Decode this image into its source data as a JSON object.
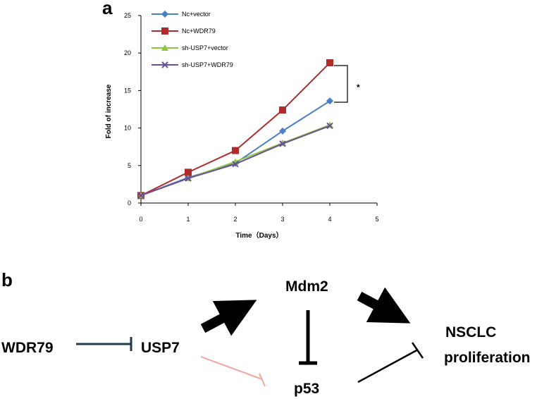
{
  "panel_a_label": "a",
  "panel_b_label": "b",
  "chart_data": {
    "type": "line",
    "xlabel": "Time（Days）",
    "ylabel": "Fold of increase",
    "xlim": [
      0,
      5
    ],
    "ylim": [
      0,
      25
    ],
    "xticks": [
      "0",
      "1",
      "2",
      "3",
      "4",
      "5"
    ],
    "yticks": [
      "0",
      "5",
      "10",
      "15",
      "20",
      "25"
    ],
    "grid": false,
    "legend_position": "top-left",
    "x": [
      0,
      1,
      2,
      3,
      4
    ],
    "series": [
      {
        "name": "Nc+vector",
        "color": "#4a7ec8",
        "marker": "diamond",
        "values": [
          1,
          3.4,
          5.3,
          9.6,
          13.6
        ]
      },
      {
        "name": "Nc+WDR79",
        "color": "#b02a2a",
        "marker": "square",
        "values": [
          1,
          4.1,
          7.0,
          12.4,
          18.7
        ]
      },
      {
        "name": "sh-USP7+vector",
        "color": "#8ec63f",
        "marker": "triangle",
        "values": [
          1,
          3.3,
          5.5,
          8.0,
          10.4
        ]
      },
      {
        "name": "sh-USP7+WDR79",
        "color": "#6a4f9c",
        "marker": "x",
        "values": [
          1,
          3.3,
          5.2,
          7.9,
          10.3
        ]
      }
    ],
    "annotation": "*"
  },
  "diagram": {
    "nodes": {
      "wdr79": "WDR79",
      "usp7": "USP7",
      "mdm2": "Mdm2",
      "p53": "p53",
      "nsclc_line1": "NSCLC",
      "nsclc_line2": "proliferation"
    },
    "edge_colors": {
      "wdr79_usp7": "#1f3a4a",
      "usp7_p53": "#f0a8a0"
    }
  }
}
